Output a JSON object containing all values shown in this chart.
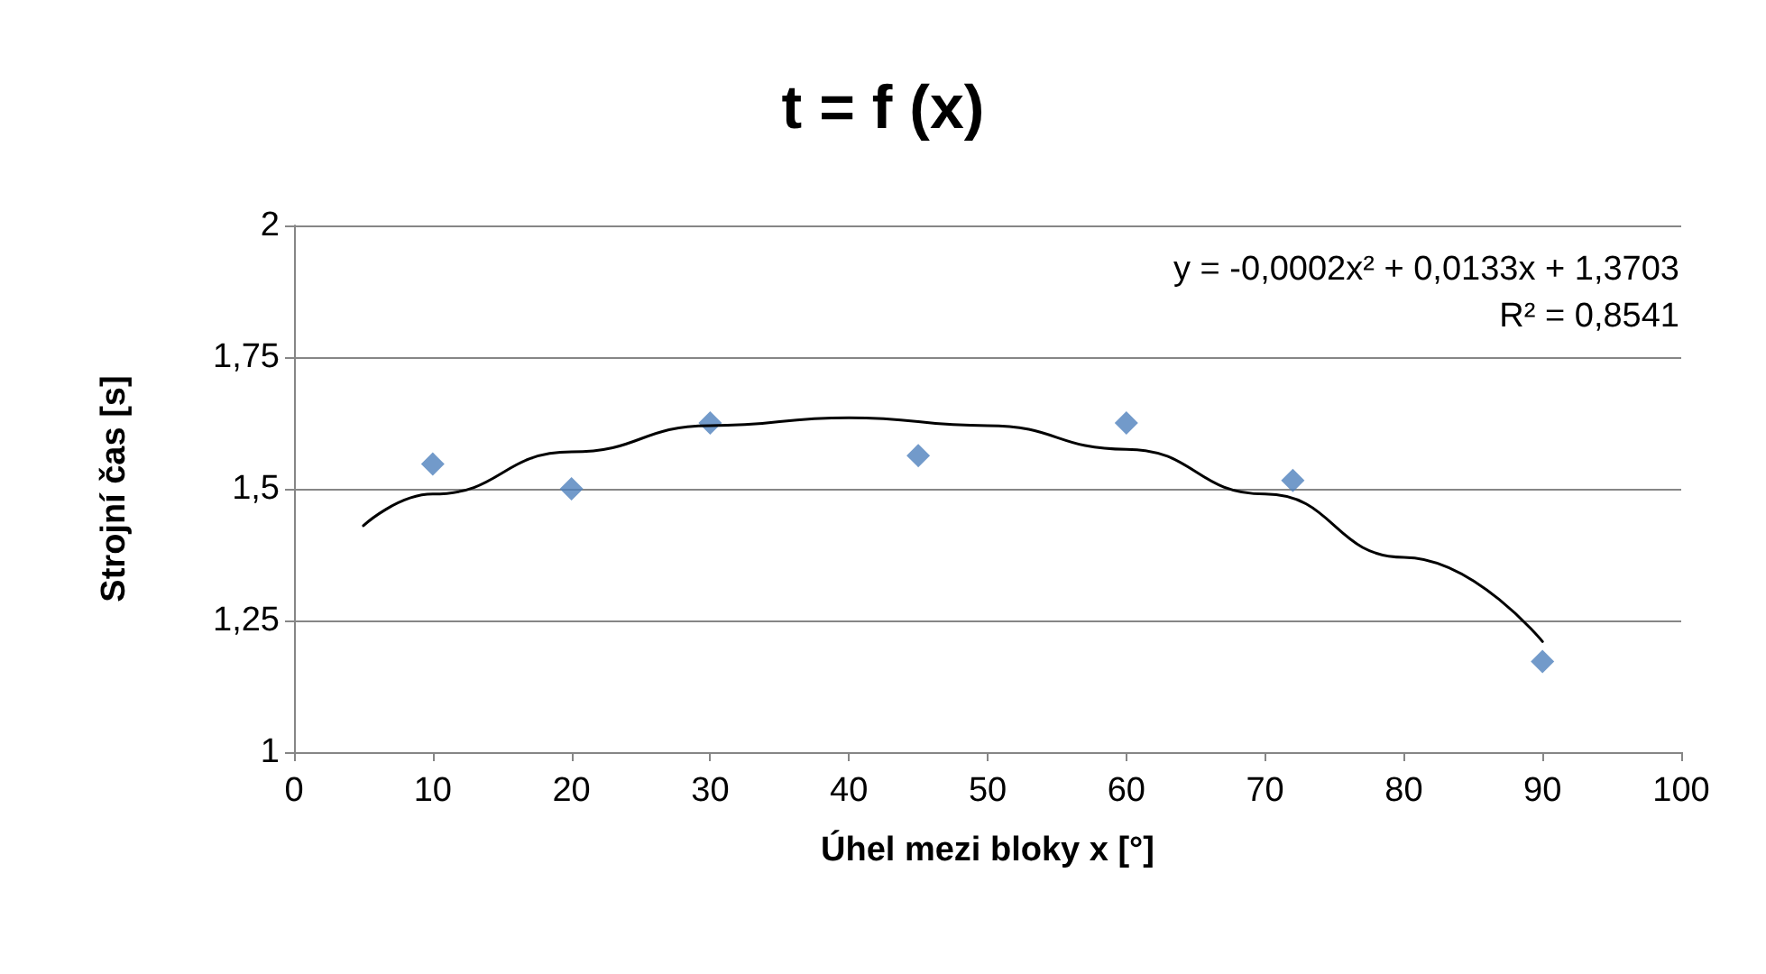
{
  "chart_data": {
    "type": "scatter",
    "title": "t = f (x)",
    "xlabel": "Úhel mezi bloky x [°]",
    "ylabel": "Strojní čas [s]",
    "annotations": [
      "y = -0,0002x² + 0,0133x + 1,3703",
      "R² = 0,8541"
    ],
    "series": [
      {
        "color": "#4f81bd",
        "marker": "diamond",
        "x": [
          10,
          20,
          30,
          45,
          60,
          72,
          90
        ],
        "values": [
          1.547,
          1.5,
          1.625,
          1.563,
          1.625,
          1.516,
          1.172
        ]
      },
      {
        "type": "line",
        "color": "#000000",
        "marker": "none",
        "line_style": "solid",
        "x": [
          5,
          10,
          20,
          30,
          40,
          50,
          60,
          70,
          80,
          90
        ],
        "values": [
          1.43,
          1.49,
          1.57,
          1.62,
          1.635,
          1.62,
          1.575,
          1.49,
          1.37,
          1.21
        ]
      }
    ],
    "xlim": [
      0,
      100
    ],
    "xticks": [
      0,
      10,
      20,
      30,
      40,
      50,
      60,
      70,
      80,
      90,
      100
    ],
    "ylim": [
      1,
      2
    ],
    "yticks": [
      1,
      {
        "value": 1.25,
        "label": "1,25"
      },
      {
        "value": 1.5,
        "label": "1,5"
      },
      {
        "value": 1.75,
        "label": "1,75"
      },
      2
    ],
    "grid": "y"
  }
}
